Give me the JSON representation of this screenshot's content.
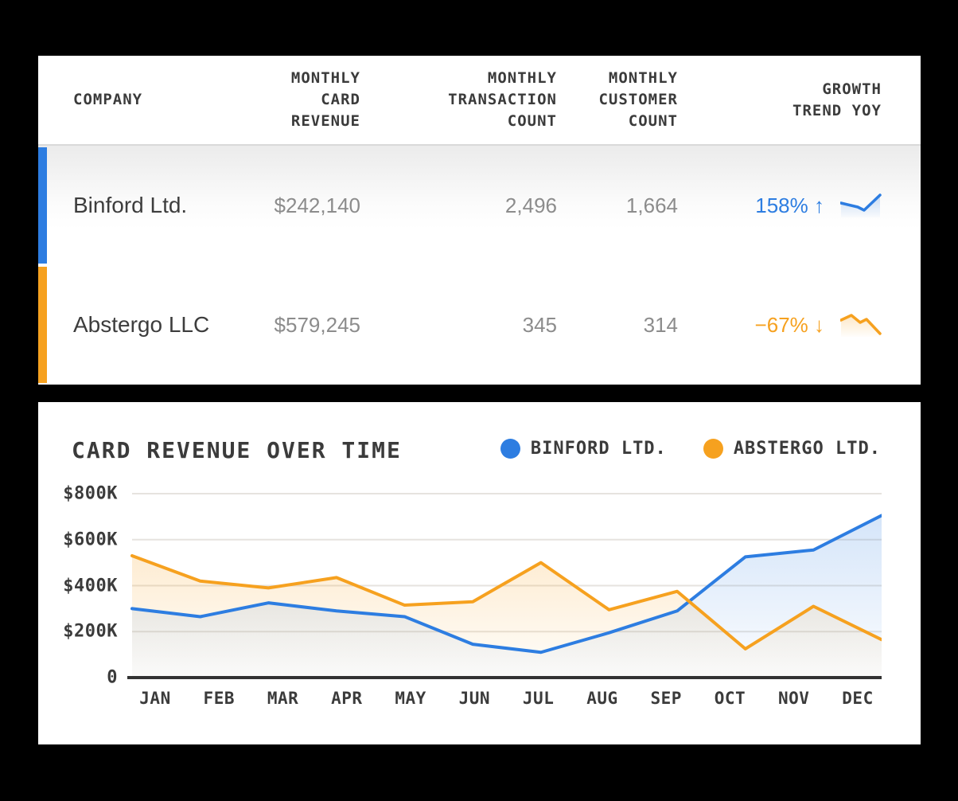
{
  "page": {
    "background": "#000000",
    "panel_background": "#ffffff"
  },
  "colors": {
    "binford_blue": "#2d7de1",
    "abstergo_orange": "#f6a11f",
    "text_dark": "#3b3b3b",
    "text_gray": "#8c8c8c",
    "gridline": "#e6e3df",
    "axis_baseline": "#333333"
  },
  "table": {
    "header": {
      "company": "COMPANY",
      "revenue": "MONTHLY\nCARD\nREVENUE",
      "transactions": "MONTHLY\nTRANSACTION\nCOUNT",
      "customers": "MONTHLY\nCUSTOMER\nCOUNT",
      "growth": "GROWTH\nTREND YOY"
    },
    "rows": [
      {
        "company": "Binford Ltd.",
        "revenue": "$242,140",
        "transactions": "2,496",
        "customers": "1,664",
        "growth": "158% ↑",
        "trend": "up",
        "accent": "#2d7de1"
      },
      {
        "company": "Abstergo LLC",
        "revenue": "$579,245",
        "transactions": "345",
        "customers": "314",
        "growth": "−67% ↓",
        "trend": "down",
        "accent": "#f6a11f"
      }
    ]
  },
  "chart": {
    "title": "CARD REVENUE OVER TIME",
    "legend": [
      {
        "label": "BINFORD LTD.",
        "color": "#2d7de1"
      },
      {
        "label": "ABSTERGO LTD.",
        "color": "#f6a11f"
      }
    ]
  },
  "chart_data": {
    "type": "area",
    "title": "CARD REVENUE OVER TIME",
    "x": [
      "JAN",
      "FEB",
      "MAR",
      "APR",
      "MAY",
      "JUN",
      "JUL",
      "AUG",
      "SEP",
      "OCT",
      "NOV",
      "DEC"
    ],
    "series": [
      {
        "name": "BINFORD LTD.",
        "color": "#2d7de1",
        "values_usd_thousands": [
          300,
          265,
          325,
          290,
          265,
          145,
          110,
          195,
          290,
          525,
          555,
          705
        ]
      },
      {
        "name": "ABSTERGO LTD.",
        "color": "#f6a11f",
        "values_usd_thousands": [
          530,
          420,
          390,
          435,
          315,
          330,
          500,
          295,
          375,
          125,
          310,
          165
        ]
      }
    ],
    "yticks": [
      {
        "label": "$800K",
        "value": 800
      },
      {
        "label": "$600K",
        "value": 600
      },
      {
        "label": "$400K",
        "value": 400
      },
      {
        "label": "$200K",
        "value": 200
      },
      {
        "label": "0",
        "value": 0
      }
    ],
    "ylim": [
      0,
      800
    ],
    "grid": true,
    "legend_position": "top-right"
  }
}
